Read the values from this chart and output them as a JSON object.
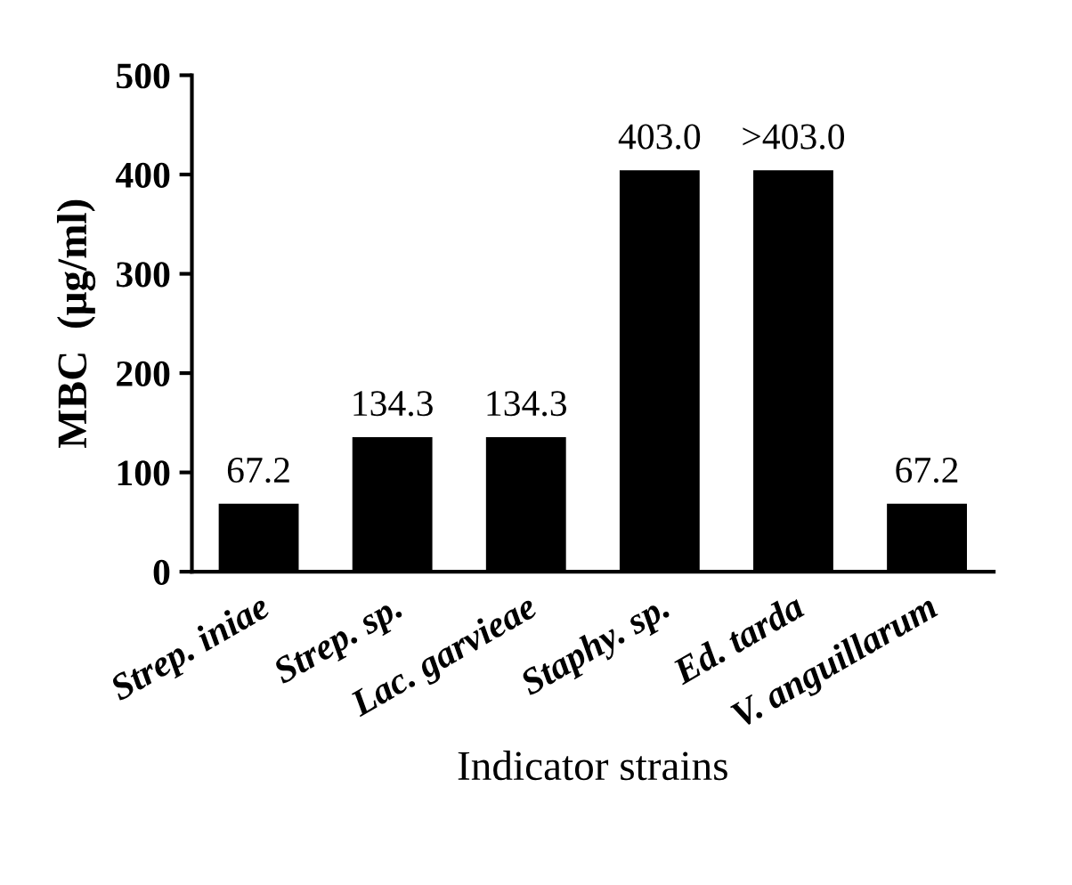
{
  "chart_data": {
    "type": "bar",
    "xlabel": "Indicator strains",
    "ylabel": "MBC  (μg/ml)",
    "categories": [
      "Strep. iniae",
      "Strep. sp.",
      "Lac. garvieae",
      "Staphy. sp.",
      "Ed. tarda",
      "V. anguillarum"
    ],
    "values": [
      67.2,
      134.3,
      134.3,
      403.0,
      403.0,
      67.2
    ],
    "value_labels": [
      "67.2",
      "134.3",
      "134.3",
      "403.0",
      ">403.0",
      "67.2"
    ],
    "color": "#000000",
    "ylim": [
      0,
      500
    ],
    "yticks": [
      0,
      100,
      200,
      300,
      400,
      500
    ],
    "grid": false,
    "legend": false
  }
}
